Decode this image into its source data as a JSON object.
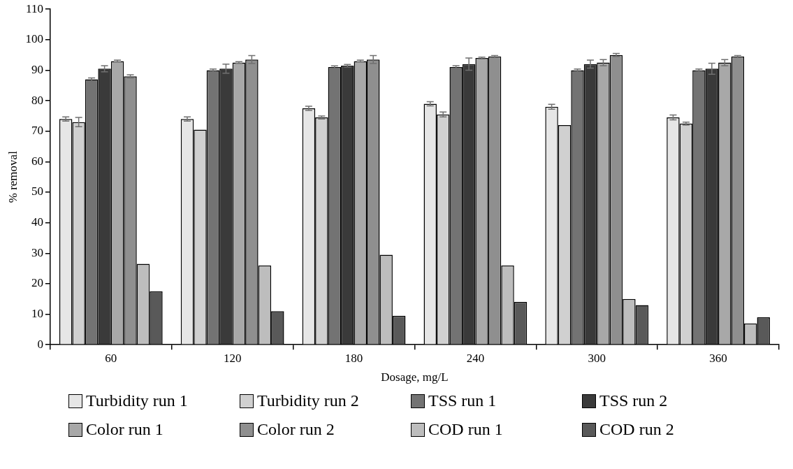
{
  "chart_data": {
    "type": "bar",
    "xlabel": "Dosage, mg/L",
    "ylabel": "% removal",
    "categories": [
      "60",
      "120",
      "180",
      "240",
      "300",
      "360"
    ],
    "ylim": [
      0,
      110
    ],
    "yticks": [
      0,
      10,
      20,
      30,
      40,
      50,
      60,
      70,
      80,
      90,
      100,
      110
    ],
    "grid": false,
    "legend": "bottom",
    "series": [
      {
        "name": "Turbidity run 1",
        "color": "#e6e6e6",
        "values": [
          74,
          74,
          77.5,
          79,
          78,
          74.5
        ],
        "errors": [
          0.7,
          0.7,
          0.7,
          0.7,
          0.8,
          0.8
        ]
      },
      {
        "name": "Turbidity run 2",
        "color": "#d0d0d0",
        "values": [
          73,
          70.5,
          74.5,
          75.5,
          72,
          72.5
        ],
        "errors": [
          1.5,
          null,
          0.5,
          0.8,
          null,
          0.5
        ]
      },
      {
        "name": "TSS run 1",
        "color": "#737373",
        "values": [
          87,
          90,
          91,
          91,
          90,
          90
        ],
        "errors": [
          0.5,
          0.4,
          0.4,
          0.5,
          0.4,
          0.4
        ]
      },
      {
        "name": "TSS run 2",
        "color": "#3a3a3a",
        "values": [
          90.5,
          90.5,
          91.5,
          92,
          92,
          90.5
        ],
        "errors": [
          1,
          1.5,
          0.4,
          2,
          1.3,
          1.8
        ]
      },
      {
        "name": "Color run 1",
        "color": "#a8a8a8",
        "values": [
          93,
          92.5,
          93,
          94,
          92.5,
          92.5
        ],
        "errors": [
          0.3,
          0.3,
          0.3,
          0.3,
          1,
          1
        ]
      },
      {
        "name": "Color run 2",
        "color": "#8f8f8f",
        "values": [
          88,
          93.5,
          93.5,
          94.5,
          95,
          94.5
        ],
        "errors": [
          0.5,
          1.3,
          1.3,
          0.3,
          0.5,
          0.3
        ]
      },
      {
        "name": "COD run 1",
        "color": "#bdbdbd",
        "values": [
          26.5,
          26,
          29.5,
          26,
          15,
          7
        ]
      },
      {
        "name": "COD run 2",
        "color": "#595959",
        "values": [
          17.5,
          11,
          9.5,
          14,
          13,
          9
        ]
      }
    ]
  }
}
